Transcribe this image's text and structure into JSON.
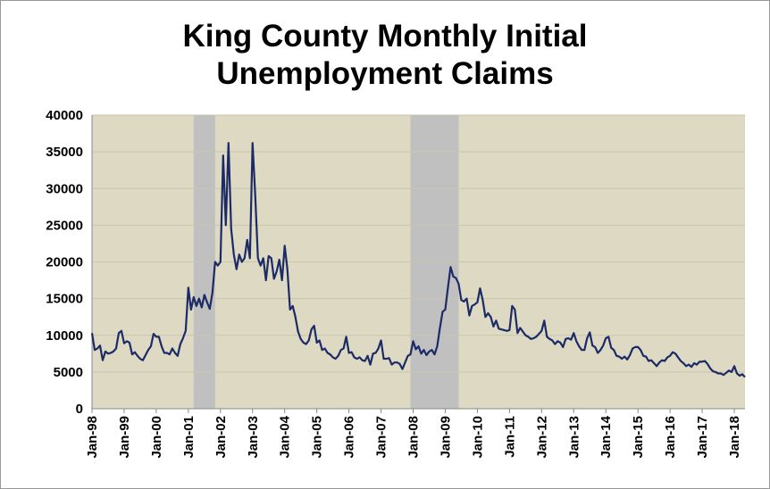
{
  "chart_data": {
    "type": "line",
    "title": "King County Monthly Initial Unemployment Claims",
    "categories": [
      "Jan-98",
      null,
      null,
      null,
      null,
      null,
      null,
      null,
      null,
      null,
      null,
      null,
      "Jan-99",
      null,
      null,
      null,
      null,
      null,
      null,
      null,
      null,
      null,
      null,
      null,
      "Jan-00",
      null,
      null,
      null,
      null,
      null,
      null,
      null,
      null,
      null,
      null,
      null,
      "Jan-01",
      null,
      null,
      null,
      null,
      null,
      null,
      null,
      null,
      null,
      null,
      null,
      "Jan-02",
      null,
      null,
      null,
      null,
      null,
      null,
      null,
      null,
      null,
      null,
      null,
      "Jan-03",
      null,
      null,
      null,
      null,
      null,
      null,
      null,
      null,
      null,
      null,
      null,
      "Jan-04",
      null,
      null,
      null,
      null,
      null,
      null,
      null,
      null,
      null,
      null,
      null,
      "Jan-05",
      null,
      null,
      null,
      null,
      null,
      null,
      null,
      null,
      null,
      null,
      null,
      "Jan-06",
      null,
      null,
      null,
      null,
      null,
      null,
      null,
      null,
      null,
      null,
      null,
      "Jan-07",
      null,
      null,
      null,
      null,
      null,
      null,
      null,
      null,
      null,
      null,
      null,
      "Jan-08",
      null,
      null,
      null,
      null,
      null,
      null,
      null,
      null,
      null,
      null,
      null,
      "Jan-09",
      null,
      null,
      null,
      null,
      null,
      null,
      null,
      null,
      null,
      null,
      null,
      "Jan-10",
      null,
      null,
      null,
      null,
      null,
      null,
      null,
      null,
      null,
      null,
      null,
      "Jan-11",
      null,
      null,
      null,
      null,
      null,
      null,
      null,
      null,
      null,
      null,
      null,
      "Jan-12",
      null,
      null,
      null,
      null,
      null,
      null,
      null,
      null,
      null,
      null,
      null,
      "Jan-13",
      null,
      null,
      null,
      null,
      null,
      null,
      null,
      null,
      null,
      null,
      null,
      "Jan-14",
      null,
      null,
      null,
      null,
      null,
      null,
      null,
      null,
      null,
      null,
      null,
      "Jan-15",
      null,
      null,
      null,
      null,
      null,
      null,
      null,
      null,
      null,
      null,
      null,
      "Jan-16",
      null,
      null,
      null,
      null,
      null,
      null,
      null,
      null,
      null,
      null,
      null,
      "Jan-17",
      null,
      null,
      null,
      null,
      null,
      null,
      null,
      null,
      null,
      null,
      null,
      "Jan-18",
      null,
      null,
      null,
      null
    ],
    "series": [
      {
        "color": "#1c2a66",
        "values": [
          10300,
          8000,
          8200,
          8600,
          6600,
          7800,
          7500,
          7600,
          7800,
          8200,
          10300,
          10600,
          8900,
          9200,
          9000,
          7400,
          7700,
          7200,
          6800,
          6600,
          7300,
          8000,
          8500,
          10200,
          9800,
          9800,
          8500,
          7600,
          7600,
          7400,
          8200,
          7600,
          7200,
          8800,
          9600,
          10600,
          16500,
          13500,
          15200,
          14000,
          15000,
          13800,
          15500,
          14500,
          13600,
          15800,
          20000,
          19500,
          20000,
          34500,
          25000,
          36200,
          24500,
          21000,
          19000,
          21000,
          20000,
          20500,
          23000,
          20500,
          36200,
          29000,
          20500,
          19500,
          20500,
          17500,
          20800,
          20500,
          17700,
          18700,
          20300,
          17500,
          22200,
          19000,
          13500,
          14000,
          12500,
          10500,
          9500,
          9000,
          8800,
          9300,
          10800,
          11300,
          9000,
          9300,
          8000,
          8200,
          7600,
          7400,
          7000,
          6800,
          7200,
          8000,
          8200,
          9800,
          7600,
          7700,
          7000,
          6800,
          7000,
          6600,
          6500,
          7200,
          6000,
          7500,
          7600,
          8200,
          9300,
          6800,
          6800,
          6900,
          6000,
          6300,
          6300,
          6100,
          5400,
          6300,
          7200,
          7400,
          9200,
          8100,
          8500,
          7500,
          8000,
          7300,
          7800,
          8000,
          7400,
          8500,
          11000,
          13200,
          13500,
          16500,
          19300,
          18000,
          17800,
          17000,
          14800,
          14600,
          15000,
          12700,
          14000,
          14200,
          14500,
          16400,
          14800,
          12500,
          13000,
          12500,
          11200,
          12000,
          10900,
          10800,
          10700,
          10600,
          10700,
          14000,
          13500,
          10300,
          11000,
          10500,
          10000,
          9800,
          9500,
          9600,
          9800,
          10200,
          10600,
          12000,
          9800,
          9500,
          9300,
          8800,
          9200,
          9000,
          8400,
          9500,
          9600,
          9400,
          10300,
          9200,
          8500,
          8000,
          8000,
          9600,
          10400,
          8600,
          8400,
          7600,
          8000,
          8600,
          9600,
          9800,
          8300,
          8000,
          7200,
          7100,
          6800,
          7100,
          6700,
          7300,
          8200,
          8400,
          8400,
          8000,
          7200,
          7100,
          6500,
          6600,
          6200,
          5800,
          6300,
          6600,
          6500,
          7000,
          7200,
          7700,
          7500,
          7000,
          6500,
          6200,
          5800,
          6000,
          5700,
          6200,
          6000,
          6400,
          6400,
          6500,
          6100,
          5500,
          5100,
          5000,
          4800,
          4800,
          4600,
          4900,
          5200,
          5000,
          5800,
          4800,
          4500,
          4700,
          4300
        ]
      }
    ],
    "shaded": [
      [
        38,
        46
      ],
      [
        119,
        137
      ]
    ],
    "shade_color": "#c0c0c0",
    "plot_background": "#ddd9c3",
    "ylim": [
      0,
      40000
    ],
    "yticks": [
      0,
      5000,
      10000,
      15000,
      20000,
      25000,
      30000,
      35000,
      40000
    ],
    "grid": true
  }
}
